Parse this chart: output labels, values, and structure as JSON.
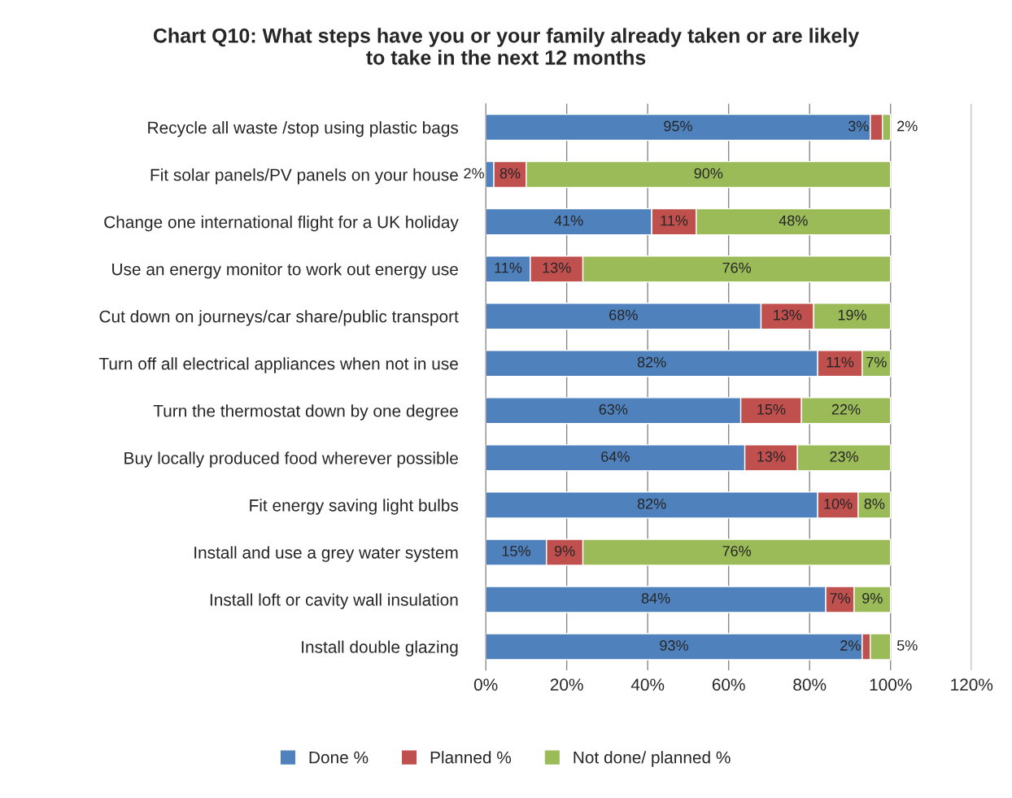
{
  "chart_data": {
    "type": "bar",
    "orientation": "horizontal",
    "stacked": true,
    "title": "Chart Q10: What steps have you or your family already taken or are likely\nto take in the next 12 months",
    "categories": [
      "Recycle all waste /stop using plastic bags",
      "Fit solar panels/PV panels on your house",
      "Change one international flight for a UK holiday",
      "Use an energy monitor to work out energy use",
      "Cut down on journeys/car share/public transport",
      "Turn off all electrical appliances when not in use",
      "Turn the thermostat down by one degree",
      "Buy locally produced food wherever possible",
      "Fit energy saving light bulbs",
      "Install and use a grey water system",
      "Install loft or cavity wall insulation",
      "Install double glazing"
    ],
    "series": [
      {
        "name": "Done %",
        "color": "#4f81bd",
        "values": [
          95,
          2,
          41,
          11,
          68,
          82,
          63,
          64,
          82,
          15,
          84,
          93
        ],
        "value_labels": [
          "95%",
          "2%",
          "41%",
          "11%",
          "68%",
          "82%",
          "63%",
          "64%",
          "82%",
          "15%",
          "84%",
          "93%"
        ]
      },
      {
        "name": "Planned %",
        "color": "#c0504d",
        "values": [
          3,
          8,
          11,
          13,
          13,
          11,
          15,
          13,
          10,
          9,
          7,
          2
        ],
        "value_labels": [
          "3%",
          "8%",
          "11%",
          "13%",
          "13%",
          "11%",
          "15%",
          "13%",
          "10%",
          "9%",
          "7%",
          "2%"
        ]
      },
      {
        "name": "Not done/ planned %",
        "color": "#9bbb59",
        "values": [
          2,
          90,
          48,
          76,
          19,
          7,
          22,
          23,
          8,
          76,
          9,
          5
        ],
        "value_labels": [
          "2%",
          "90%",
          "48%",
          "76%",
          "19%",
          "7%",
          "22%",
          "23%",
          "8%",
          "76%",
          "9%",
          "5%"
        ]
      }
    ],
    "xlim": [
      0,
      120
    ],
    "xticks": [
      {
        "value": 0,
        "label": "0%"
      },
      {
        "value": 20,
        "label": "20%"
      },
      {
        "value": 40,
        "label": "40%"
      },
      {
        "value": 60,
        "label": "60%"
      },
      {
        "value": 80,
        "label": "80%"
      },
      {
        "value": 100,
        "label": "100%"
      },
      {
        "value": 120,
        "label": "120%"
      }
    ],
    "grid": "x",
    "legend": "bottom"
  }
}
